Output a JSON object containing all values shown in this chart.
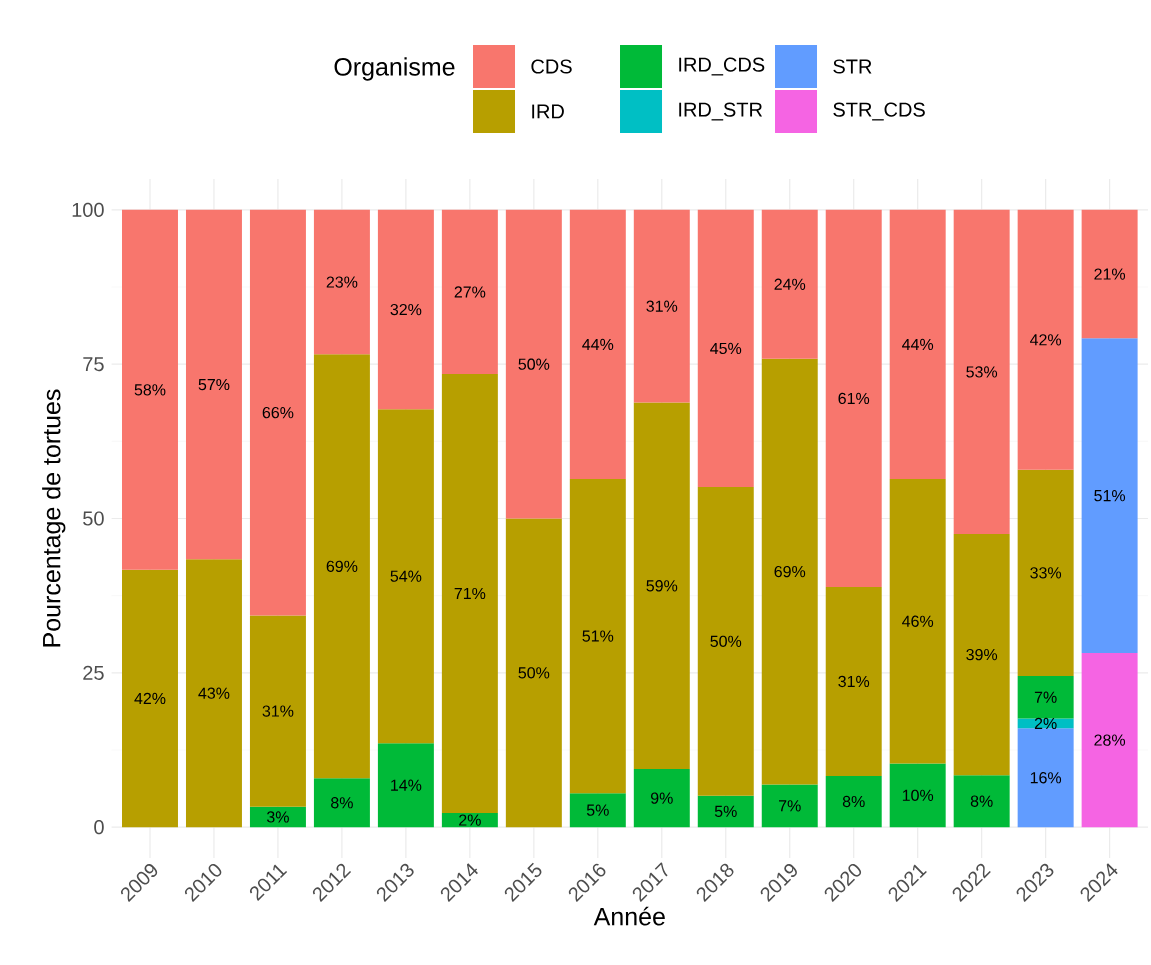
{
  "chart_data": {
    "type": "bar",
    "stacked": true,
    "xlabel": "Année",
    "ylabel": "Pourcentage de tortues",
    "legend_title": "Organisme",
    "legend": "top",
    "grid": true,
    "categories": [
      "2009",
      "2010",
      "2011",
      "2012",
      "2013",
      "2014",
      "2015",
      "2016",
      "2017",
      "2018",
      "2019",
      "2020",
      "2021",
      "2022",
      "2023",
      "2024"
    ],
    "ylim": [
      -5,
      105
    ],
    "yticks": [
      0,
      25,
      50,
      75,
      100
    ],
    "series": [
      {
        "name": "STR_CDS",
        "color": "#f564e3",
        "values": [
          null,
          null,
          null,
          null,
          null,
          null,
          null,
          null,
          null,
          null,
          null,
          null,
          null,
          null,
          null,
          28.2
        ],
        "value_labels": [
          null,
          null,
          null,
          null,
          null,
          null,
          null,
          null,
          null,
          null,
          null,
          null,
          null,
          null,
          null,
          "28%"
        ]
      },
      {
        "name": "STR",
        "color": "#619cff",
        "values": [
          null,
          null,
          null,
          null,
          null,
          null,
          null,
          null,
          null,
          null,
          null,
          null,
          null,
          null,
          16.0,
          51.0
        ],
        "value_labels": [
          null,
          null,
          null,
          null,
          null,
          null,
          null,
          null,
          null,
          null,
          null,
          null,
          null,
          null,
          "16%",
          "51%"
        ]
      },
      {
        "name": "IRD_STR",
        "color": "#00bfc4",
        "values": [
          null,
          null,
          null,
          null,
          null,
          null,
          null,
          null,
          null,
          null,
          null,
          null,
          null,
          null,
          1.6,
          null
        ],
        "value_labels": [
          null,
          null,
          null,
          null,
          null,
          null,
          null,
          null,
          null,
          null,
          null,
          null,
          null,
          null,
          "2%",
          null
        ]
      },
      {
        "name": "IRD_CDS",
        "color": "#00ba38",
        "values": [
          null,
          null,
          3.3,
          7.9,
          13.6,
          2.3,
          null,
          5.5,
          9.4,
          5.1,
          6.9,
          8.3,
          10.3,
          8.4,
          6.9,
          null
        ],
        "value_labels": [
          null,
          null,
          "3%",
          "8%",
          "14%",
          "2%",
          null,
          "5%",
          "9%",
          "5%",
          "7%",
          "8%",
          "10%",
          "8%",
          "7%",
          null
        ]
      },
      {
        "name": "IRD",
        "color": "#b79f00",
        "values": [
          41.7,
          43.4,
          31.0,
          68.7,
          54.1,
          71.1,
          50,
          50.9,
          59.4,
          50.0,
          69.0,
          30.6,
          46.1,
          39.1,
          33.4,
          null
        ],
        "value_labels": [
          "42%",
          "43%",
          "31%",
          "69%",
          "54%",
          "71%",
          "50%",
          "51%",
          "59%",
          "50%",
          "69%",
          "31%",
          "46%",
          "39%",
          "33%",
          null
        ]
      },
      {
        "name": "CDS",
        "color": "#f8766d",
        "values": [
          58.3,
          56.6,
          65.7,
          23.4,
          32.3,
          26.6,
          50,
          43.6,
          31.2,
          44.9,
          24.1,
          61.1,
          43.6,
          52.5,
          42.1,
          20.8
        ],
        "value_labels": [
          "58%",
          "57%",
          "66%",
          "23%",
          "32%",
          "27%",
          "50%",
          "44%",
          "31%",
          "45%",
          "24%",
          "61%",
          "44%",
          "53%",
          "42%",
          "21%"
        ]
      }
    ]
  }
}
